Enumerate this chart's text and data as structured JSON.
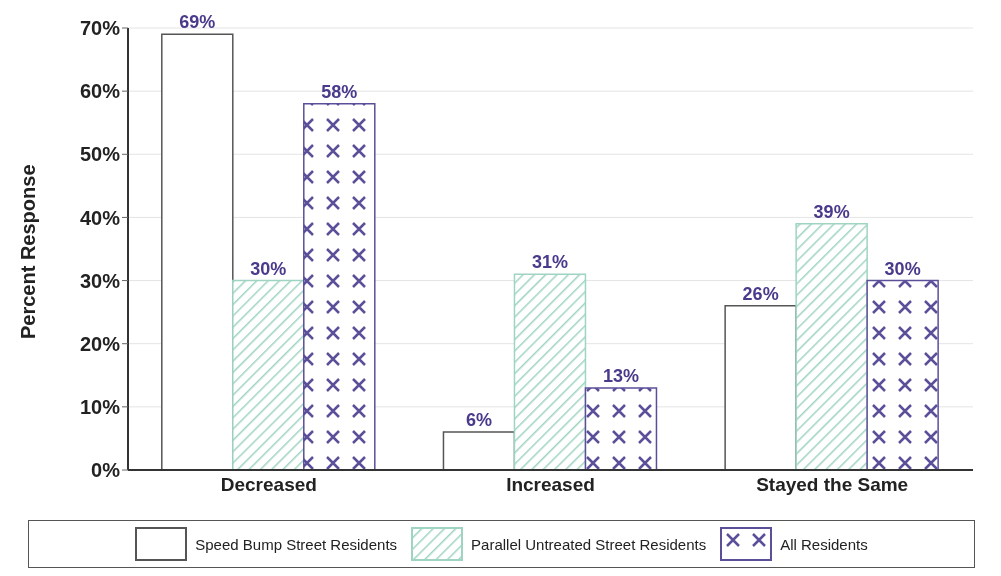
{
  "chart_data": {
    "type": "bar",
    "ylabel": "Percent Response",
    "categories": [
      "Decreased",
      "Increased",
      "Stayed the Same"
    ],
    "series": [
      {
        "name": "Speed Bump Street Residents",
        "color": "#555555",
        "values": [
          69,
          6,
          26
        ]
      },
      {
        "name": "Parallel Untreated Street Residents",
        "color": "#9fd4c0",
        "values": [
          30,
          31,
          39
        ]
      },
      {
        "name": "All Residents",
        "color": "#5b4f9a",
        "values": [
          58,
          13,
          30
        ]
      }
    ],
    "ylim": [
      0,
      70
    ],
    "yticks": [
      {
        "value": 0,
        "label": "0%"
      },
      {
        "value": 10,
        "label": "10%"
      },
      {
        "value": 20,
        "label": "20%"
      },
      {
        "value": 30,
        "label": "30%"
      },
      {
        "value": 40,
        "label": "40%"
      },
      {
        "value": 50,
        "label": "50%"
      },
      {
        "value": 60,
        "label": "60%"
      },
      {
        "value": 70,
        "label": "70%"
      }
    ],
    "value_labels": [
      [
        "69%",
        "6%",
        "26%"
      ],
      [
        "30%",
        "31%",
        "39%"
      ],
      [
        "58%",
        "13%",
        "30%"
      ]
    ],
    "grid": "y",
    "legend": "bottom"
  }
}
